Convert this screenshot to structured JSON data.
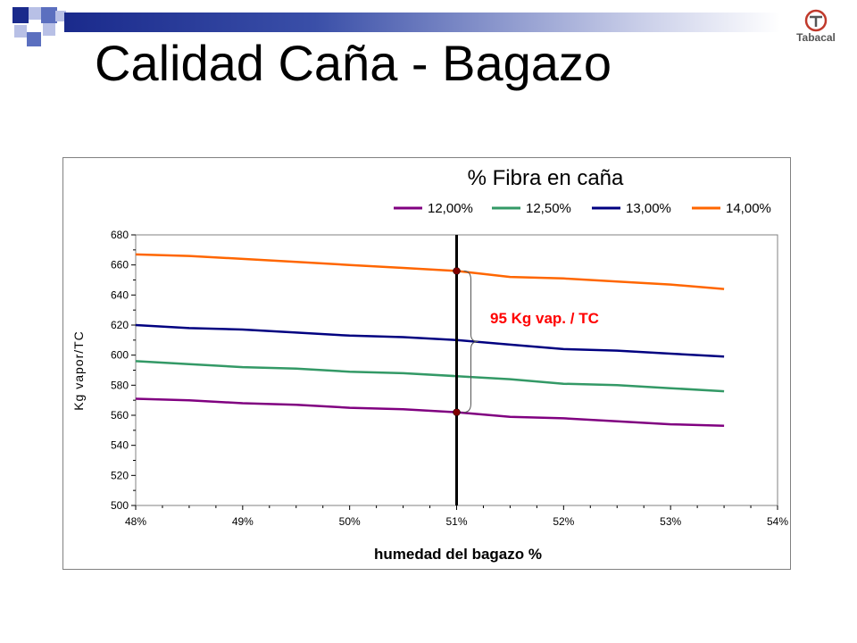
{
  "slide": {
    "title": "Calidad Caña - Bagazo",
    "logo_text": "Tabacal"
  },
  "colors": {
    "accent_navy": "#1a2a8c",
    "accent_blue": "#5b6fbf",
    "accent_light": "#b8c0e6",
    "annotation": "#ff0000"
  },
  "chart_data": {
    "type": "line",
    "title": "% Fibra en caña",
    "xlabel": "humedad del bagazo %",
    "ylabel": "Kg vapor/TC",
    "xlim": [
      48,
      54
    ],
    "ylim": [
      500,
      680
    ],
    "x_ticks": [
      "48%",
      "49%",
      "50%",
      "51%",
      "52%",
      "53%",
      "54%"
    ],
    "y_ticks": [
      "500",
      "520",
      "540",
      "560",
      "580",
      "600",
      "620",
      "640",
      "660",
      "680"
    ],
    "legend_position": "top",
    "x": [
      48.0,
      48.5,
      49.0,
      49.5,
      50.0,
      50.5,
      51.0,
      51.5,
      52.0,
      52.5,
      53.0,
      53.5
    ],
    "series": [
      {
        "name": "12,00%",
        "color": "#800080",
        "values": [
          571,
          570,
          568,
          567,
          565,
          564,
          562,
          559,
          558,
          556,
          554,
          553
        ]
      },
      {
        "name": "12,50%",
        "color": "#339966",
        "values": [
          596,
          594,
          592,
          591,
          589,
          588,
          586,
          584,
          581,
          580,
          578,
          576
        ]
      },
      {
        "name": "13,00%",
        "color": "#000080",
        "values": [
          620,
          618,
          617,
          615,
          613,
          612,
          610,
          607,
          604,
          603,
          601,
          599
        ]
      },
      {
        "name": "14,00%",
        "color": "#ff6600",
        "values": [
          667,
          666,
          664,
          662,
          660,
          658,
          656,
          652,
          651,
          649,
          647,
          644
        ]
      }
    ],
    "vertical_marker_x": 51.0,
    "marker_points": [
      {
        "x": 51.0,
        "y": 656
      },
      {
        "x": 51.0,
        "y": 562
      }
    ],
    "annotation": "95 Kg vap. / TC"
  }
}
